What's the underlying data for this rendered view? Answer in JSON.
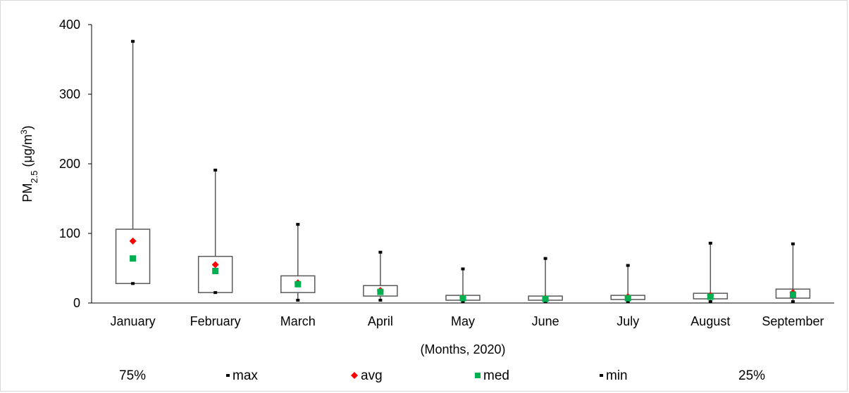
{
  "chart_data": {
    "type": "box",
    "xlabel": "(Months, 2020)",
    "ylabel": {
      "base": "PM",
      "subscript": "2.5",
      "unit_prefix": " (μg/m",
      "unit_superscript": "3",
      "unit_suffix": ")"
    },
    "ylim": [
      0,
      400
    ],
    "yticks": [
      "0",
      "100",
      "200",
      "300",
      "400"
    ],
    "grid": false,
    "categories": [
      "January",
      "February",
      "March",
      "April",
      "May",
      "June",
      "July",
      "August",
      "September"
    ],
    "max": [
      376,
      191,
      113,
      73,
      49,
      64,
      54,
      86,
      85
    ],
    "q3": [
      106,
      67,
      39,
      25,
      11,
      10,
      11,
      14,
      20
    ],
    "avg": [
      89,
      55,
      29,
      18,
      8,
      7,
      9,
      11,
      15
    ],
    "med": [
      64,
      46,
      27,
      16,
      7,
      6,
      7,
      9,
      12
    ],
    "q1": [
      28,
      15,
      15,
      10,
      4,
      4,
      5,
      6,
      7
    ],
    "min": [
      28,
      15,
      4,
      4,
      2,
      2,
      2,
      2,
      2
    ],
    "legend": [
      {
        "key": "q3",
        "label": "75%",
        "marker": "none"
      },
      {
        "key": "max",
        "label": "max",
        "marker": "dash"
      },
      {
        "key": "avg",
        "label": "avg",
        "marker": "diamond"
      },
      {
        "key": "med",
        "label": "med",
        "marker": "square"
      },
      {
        "key": "min",
        "label": "min",
        "marker": "dash"
      },
      {
        "key": "q1",
        "label": "25%",
        "marker": "none"
      }
    ],
    "legend_position": "bottom",
    "colors": {
      "avg": "#ff0000",
      "med": "#00b050",
      "box": "#595959",
      "axis": "#000000"
    }
  }
}
